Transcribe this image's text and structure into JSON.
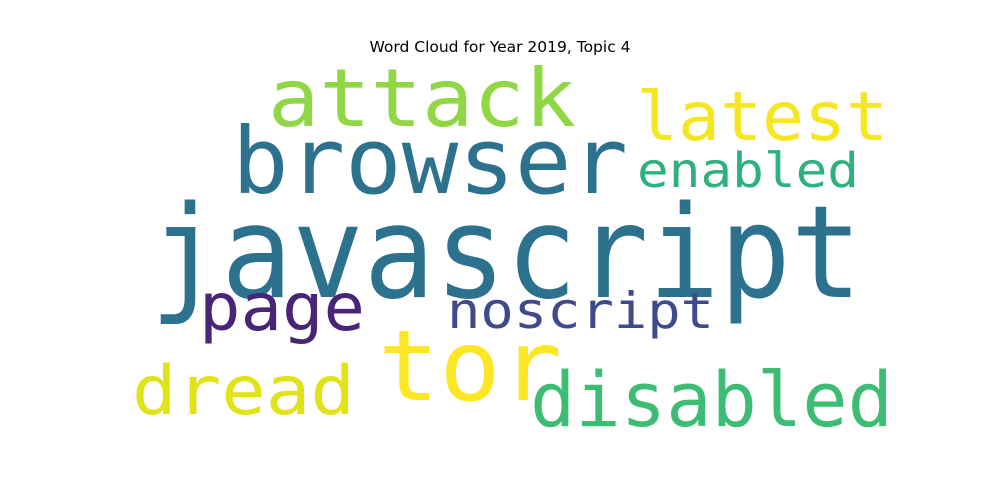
{
  "title": "Word Cloud for Year 2019, Topic 4",
  "words": [
    {
      "text": "javascript",
      "color": "#2c728e"
    },
    {
      "text": "browser",
      "color": "#2c728e"
    },
    {
      "text": "attack",
      "color": "#8fd744"
    },
    {
      "text": "tor",
      "color": "#fde725"
    },
    {
      "text": "latest",
      "color": "#f6e621"
    },
    {
      "text": "enabled",
      "color": "#2db27d"
    },
    {
      "text": "page",
      "color": "#482576"
    },
    {
      "text": "noscript",
      "color": "#3e4a89"
    },
    {
      "text": "dread",
      "color": "#dfe318"
    },
    {
      "text": "disabled",
      "color": "#3dbc74"
    }
  ]
}
